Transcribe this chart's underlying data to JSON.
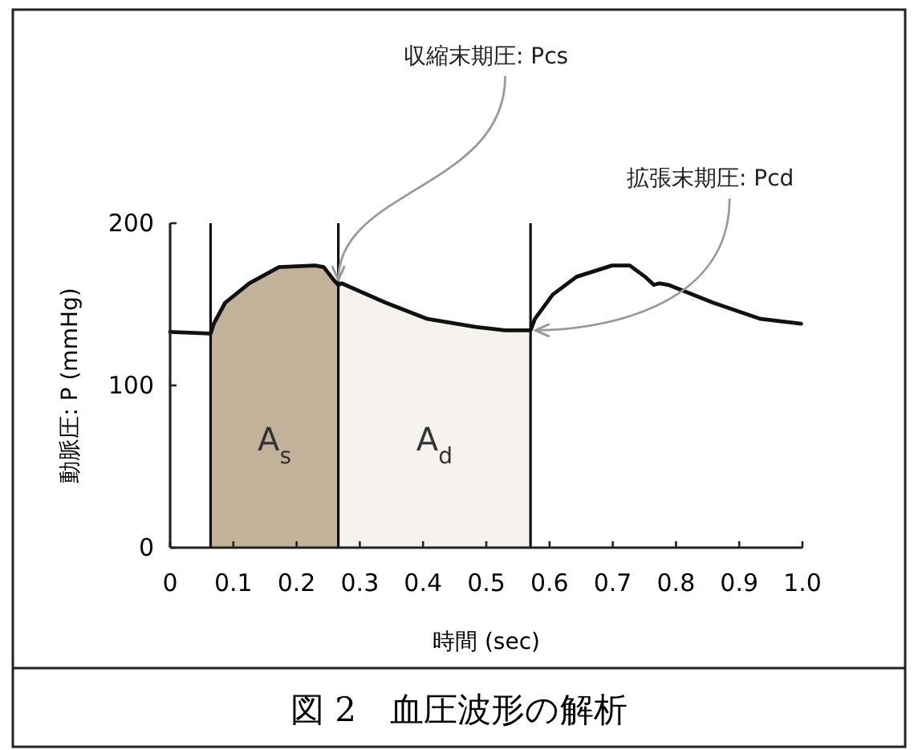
{
  "chart_data": {
    "type": "line",
    "title": "図 2　血圧波形の解析",
    "xlabel": "時間 (sec)",
    "ylabel": "動脈圧: P (mmHg)",
    "xlim": [
      0,
      1.0
    ],
    "ylim": [
      0,
      200
    ],
    "xticks": [
      0,
      0.1,
      0.2,
      0.3,
      0.4,
      0.5,
      0.6,
      0.7,
      0.8,
      0.9,
      {
        "value": 1.0,
        "label": "1.0"
      }
    ],
    "yticks": [
      0,
      100,
      200
    ],
    "series": [
      {
        "name": "A$_{s}$",
        "type": "area",
        "color": "#c2b29a",
        "x": [
          0.064,
          0.069,
          0.087,
          0.125,
          0.172,
          0.229,
          0.243,
          0.259,
          0.266
        ],
        "values": [
          132,
          138,
          151,
          163,
          173,
          174,
          173,
          165,
          162
        ]
      },
      {
        "name": "A$_{d}$",
        "type": "area",
        "color": "#f6f3ee",
        "x": [
          0.266,
          0.271,
          0.341,
          0.407,
          0.483,
          0.53,
          0.57
        ],
        "values": [
          162,
          163,
          151,
          141,
          136,
          134,
          134
        ]
      },
      {
        "type": "line",
        "color": "#111111",
        "x": [
          0,
          0.064,
          0.069,
          0.087,
          0.125,
          0.172,
          0.229,
          0.243,
          0.259,
          0.266,
          0.271,
          0.341,
          0.407,
          0.483,
          0.53,
          0.57,
          0.577,
          0.605,
          0.643,
          0.699,
          0.727,
          0.751,
          0.765,
          0.774,
          0.788,
          0.859,
          0.934,
          0.998
        ],
        "values": [
          133,
          132,
          138,
          151,
          163,
          173,
          174,
          173,
          165,
          162,
          163,
          151,
          141,
          136,
          134,
          134,
          141,
          156,
          167,
          174,
          174,
          167,
          162,
          163,
          162,
          151,
          141,
          138
        ]
      }
    ],
    "ref_lines": [
      {
        "axis": "x",
        "value": 0.064,
        "color": "#111111"
      },
      {
        "axis": "x",
        "value": 0.266,
        "color": "#111111"
      },
      {
        "axis": "x",
        "value": 0.57,
        "color": "#111111"
      }
    ],
    "annotations": [
      {
        "text": "収縮末期圧: Pcs",
        "x": 0.266,
        "y": 162
      },
      {
        "text": "拡張末期圧: Pcd",
        "x": 0.57,
        "y": 134
      }
    ]
  }
}
